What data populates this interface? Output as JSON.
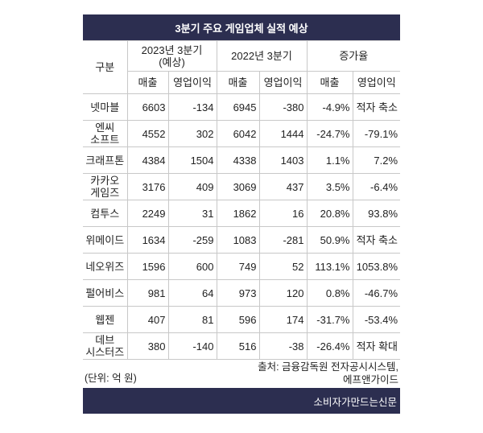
{
  "title": "3분기 주요 게임업체 실적 예상",
  "header": {
    "group_label": "구분",
    "groups": [
      [
        "2023년 3분기",
        "(예상)"
      ],
      [
        "2022년 3분기"
      ],
      [
        "증가율"
      ]
    ],
    "subheaders": [
      "매출",
      "영업이익",
      "매출",
      "영업이익",
      "매출",
      "영업이익"
    ]
  },
  "rows": [
    {
      "company": [
        "넷마블"
      ],
      "cells": [
        "6603",
        "-134",
        "6945",
        "-380",
        "-4.9%",
        "적자 축소"
      ]
    },
    {
      "company": [
        "엔씨",
        "소프트"
      ],
      "cells": [
        "4552",
        "302",
        "6042",
        "1444",
        "-24.7%",
        "-79.1%"
      ]
    },
    {
      "company": [
        "크래프톤"
      ],
      "cells": [
        "4384",
        "1504",
        "4338",
        "1403",
        "1.1%",
        "7.2%"
      ]
    },
    {
      "company": [
        "카카오",
        "게임즈"
      ],
      "cells": [
        "3176",
        "409",
        "3069",
        "437",
        "3.5%",
        "-6.4%"
      ]
    },
    {
      "company": [
        "컴투스"
      ],
      "cells": [
        "2249",
        "31",
        "1862",
        "16",
        "20.8%",
        "93.8%"
      ]
    },
    {
      "company": [
        "위메이드"
      ],
      "cells": [
        "1634",
        "-259",
        "1083",
        "-281",
        "50.9%",
        "적자 축소"
      ]
    },
    {
      "company": [
        "네오위즈"
      ],
      "cells": [
        "1596",
        "600",
        "749",
        "52",
        "113.1%",
        "1053.8%"
      ]
    },
    {
      "company": [
        "펄어비스"
      ],
      "cells": [
        "981",
        "64",
        "973",
        "120",
        "0.8%",
        "-46.7%"
      ]
    },
    {
      "company": [
        "웹젠"
      ],
      "cells": [
        "407",
        "81",
        "596",
        "174",
        "-31.7%",
        "-53.4%"
      ]
    },
    {
      "company": [
        "데브",
        "시스터즈"
      ],
      "cells": [
        "380",
        "-140",
        "516",
        "-38",
        "-26.4%",
        "적자 확대"
      ]
    }
  ],
  "unit_note": "(단위: 억 원)",
  "source": [
    "출처: 금융감독원 전자공시시스템,",
    "에프앤가이드"
  ],
  "footer": "소비자가만드는신문"
}
